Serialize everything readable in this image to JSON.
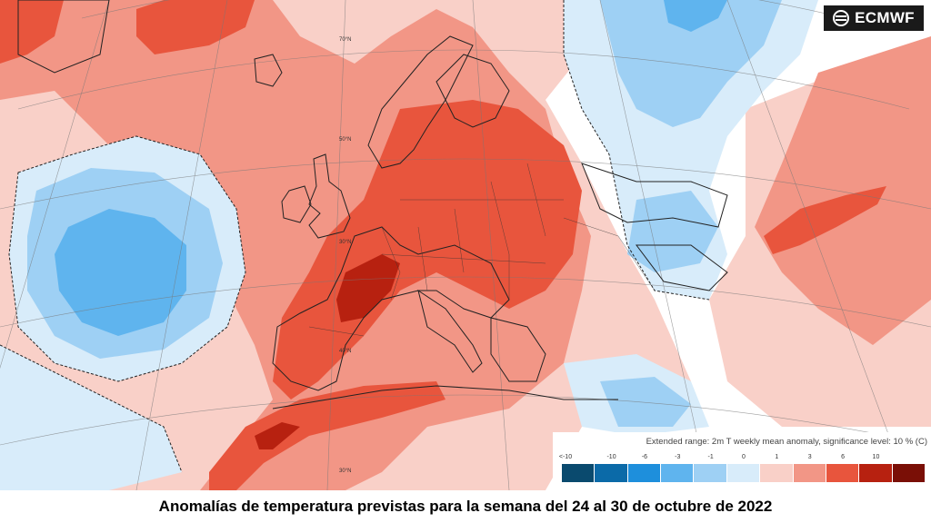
{
  "logo": {
    "text": "ECMWF",
    "icon": "ecmwf-logo-icon"
  },
  "legend": {
    "title": "Extended range: 2m T weekly mean anomaly, significance level: 10 % (C)",
    "ticks": [
      "<-10",
      "-10",
      "-6",
      "-3",
      "-1",
      "0",
      "1",
      "3",
      "6",
      "10"
    ],
    "colors": [
      "#0a4a6e",
      "#0b6aa8",
      "#1e8fdc",
      "#5fb4ee",
      "#9ed0f4",
      "#d8ecfa",
      "#f9d0c8",
      "#f29686",
      "#e8553d",
      "#b72110",
      "#7a0f06"
    ]
  },
  "latitude_labels": [
    "70°N",
    "50°N",
    "30°N",
    "40°N",
    "30°N"
  ],
  "caption": "Anomalías de temperatura previstas para la semana del 24 al 30 de octubre de 2022"
}
